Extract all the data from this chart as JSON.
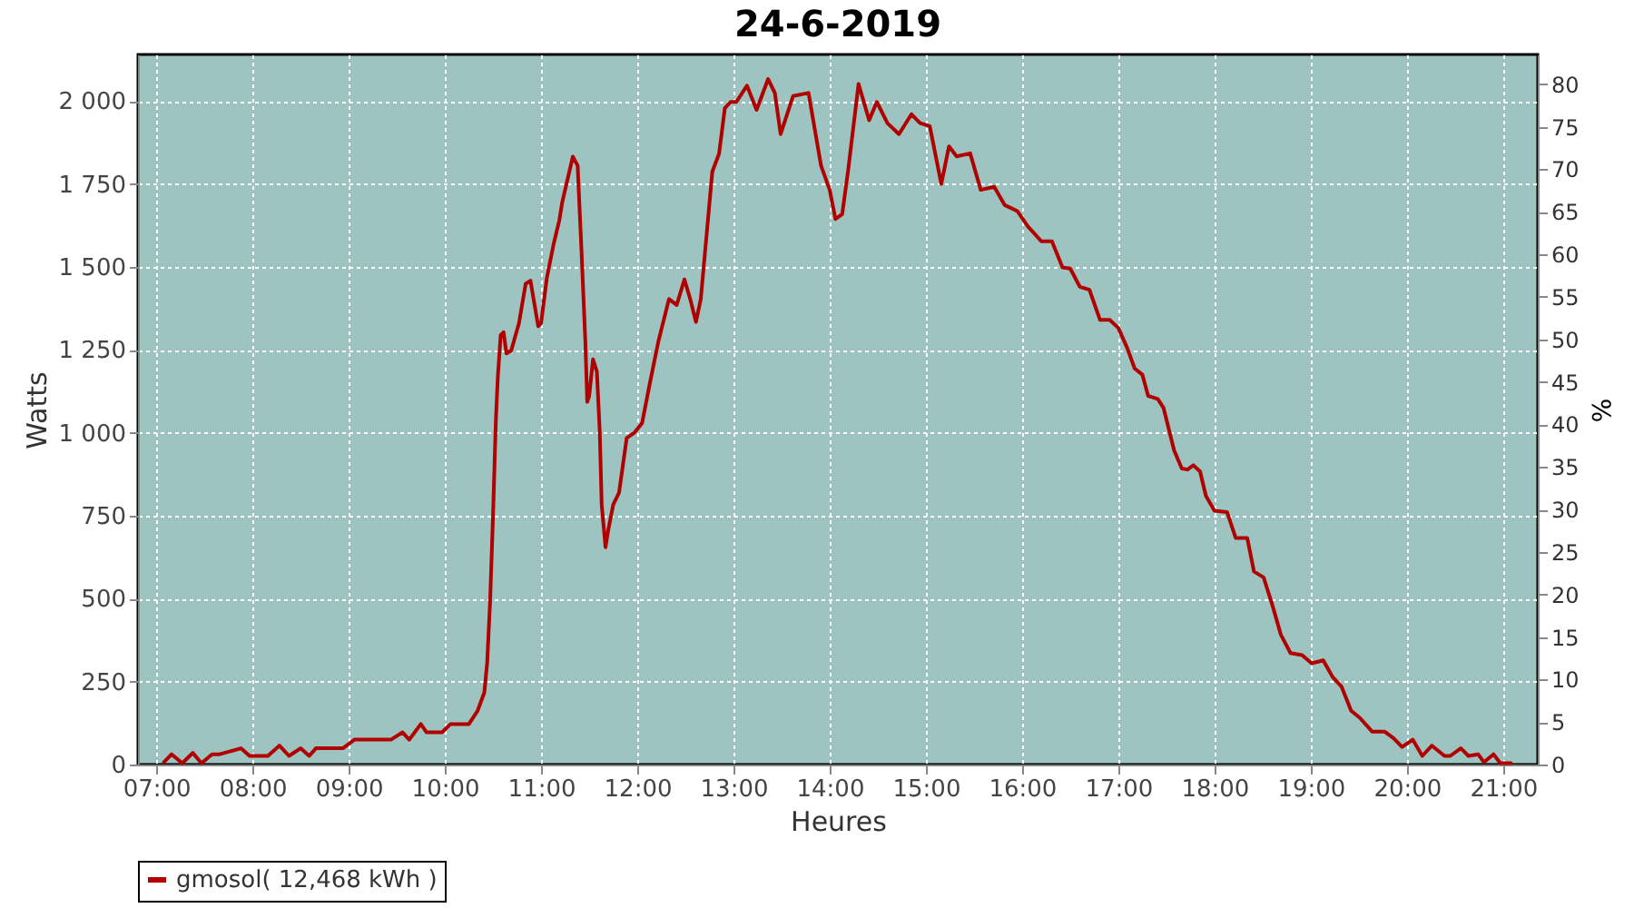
{
  "chart_data": {
    "type": "line",
    "title": "24-6-2019",
    "xlabel": "Heures",
    "ylabel": "Watts",
    "y2label": "%",
    "xlim": [
      6.81,
      21.36
    ],
    "xticks": [
      {
        "value": 7,
        "label": "07:00"
      },
      {
        "value": 8,
        "label": "08:00"
      },
      {
        "value": 9,
        "label": "09:00"
      },
      {
        "value": 10,
        "label": "10:00"
      },
      {
        "value": 11,
        "label": "11:00"
      },
      {
        "value": 12,
        "label": "12:00"
      },
      {
        "value": 13,
        "label": "13:00"
      },
      {
        "value": 14,
        "label": "14:00"
      },
      {
        "value": 15,
        "label": "15:00"
      },
      {
        "value": 16,
        "label": "16:00"
      },
      {
        "value": 17,
        "label": "17:00"
      },
      {
        "value": 18,
        "label": "18:00"
      },
      {
        "value": 19,
        "label": "19:00"
      },
      {
        "value": 20,
        "label": "20:00"
      },
      {
        "value": 21,
        "label": "21:00"
      }
    ],
    "ylim": [
      0,
      2140
    ],
    "yticks": [
      0,
      250,
      500,
      750,
      {
        "value": 1000,
        "label": "1 000"
      },
      {
        "value": 1250,
        "label": "1 250"
      },
      {
        "value": 1500,
        "label": "1 500"
      },
      {
        "value": 1750,
        "label": "1 750"
      },
      {
        "value": 2000,
        "label": "2 000"
      }
    ],
    "y2lim": [
      0,
      83.5
    ],
    "y2ticks": [
      0,
      5,
      10,
      15,
      20,
      25,
      30,
      35,
      40,
      45,
      50,
      55,
      60,
      65,
      70,
      75,
      80
    ],
    "grid": true,
    "legend": "bottom",
    "series": [
      {
        "name": "gmosol( 12,468 kWh )",
        "color": "#b00000",
        "x": [
          7.08,
          7.16,
          7.27,
          7.38,
          7.47,
          7.58,
          7.66,
          7.88,
          7.97,
          8.16,
          8.28,
          8.38,
          8.5,
          8.59,
          8.66,
          8.94,
          9.06,
          9.44,
          9.56,
          9.63,
          9.75,
          9.81,
          9.97,
          10.06,
          10.25,
          10.34,
          10.41,
          10.44,
          10.47,
          10.5,
          10.53,
          10.55,
          10.58,
          10.61,
          10.64,
          10.69,
          10.77,
          10.84,
          10.89,
          10.97,
          11.0,
          11.06,
          11.13,
          11.19,
          11.22,
          11.33,
          11.38,
          11.42,
          11.46,
          11.48,
          11.5,
          11.54,
          11.58,
          11.61,
          11.63,
          11.67,
          11.7,
          11.75,
          11.81,
          11.89,
          11.97,
          12.05,
          12.13,
          12.22,
          12.33,
          12.41,
          12.49,
          12.55,
          12.61,
          12.66,
          12.74,
          12.78,
          12.85,
          12.91,
          12.97,
          13.03,
          13.14,
          13.24,
          13.36,
          13.43,
          13.49,
          13.62,
          13.78,
          13.91,
          14.0,
          14.06,
          14.13,
          14.19,
          14.3,
          14.41,
          14.49,
          14.6,
          14.72,
          14.85,
          14.94,
          15.04,
          15.16,
          15.24,
          15.32,
          15.46,
          15.57,
          15.71,
          15.82,
          15.95,
          16.06,
          16.2,
          16.31,
          16.42,
          16.5,
          16.6,
          16.7,
          16.81,
          16.91,
          17.0,
          17.09,
          17.17,
          17.25,
          17.31,
          17.41,
          17.47,
          17.58,
          17.66,
          17.72,
          17.78,
          17.85,
          17.91,
          18.0,
          18.13,
          18.22,
          18.34,
          18.41,
          18.51,
          18.6,
          18.69,
          18.79,
          18.91,
          19.01,
          19.13,
          19.23,
          19.32,
          19.42,
          19.51,
          19.64,
          19.77,
          19.86,
          19.95,
          20.06,
          20.16,
          20.26,
          20.39,
          20.45,
          20.56,
          20.64,
          20.74,
          20.8,
          20.9,
          20.97,
          21.08
        ],
        "values": [
          7,
          31,
          4,
          35,
          4,
          31,
          31,
          49,
          26,
          26,
          57,
          26,
          49,
          26,
          49,
          49,
          75,
          75,
          97,
          75,
          122,
          97,
          97,
          122,
          122,
          162,
          217,
          308,
          491,
          746,
          1038,
          1166,
          1294,
          1303,
          1239,
          1248,
          1330,
          1449,
          1458,
          1321,
          1330,
          1467,
          1568,
          1641,
          1695,
          1832,
          1805,
          1549,
          1276,
          1093,
          1111,
          1221,
          1184,
          1002,
          783,
          655,
          710,
          783,
          819,
          984,
          1000,
          1029,
          1148,
          1276,
          1403,
          1385,
          1462,
          1403,
          1334,
          1403,
          1659,
          1787,
          1841,
          1978,
          1997,
          1997,
          2046,
          1973,
          2066,
          2024,
          1900,
          2015,
          2024,
          1805,
          1732,
          1644,
          1659,
          1787,
          2051,
          1942,
          1997,
          1933,
          1900,
          1960,
          1933,
          1924,
          1750,
          1863,
          1833,
          1842,
          1732,
          1741,
          1686,
          1668,
          1622,
          1577,
          1577,
          1498,
          1495,
          1440,
          1431,
          1340,
          1340,
          1316,
          1257,
          1194,
          1175,
          1111,
          1102,
          1075,
          947,
          892,
          889,
          902,
          883,
          810,
          765,
          761,
          683,
          683,
          582,
          564,
          482,
          391,
          336,
          330,
          305,
          314,
          263,
          235,
          162,
          141,
          99,
          99,
          80,
          53,
          75,
          26,
          57,
          26,
          26,
          49,
          26,
          31,
          7,
          31,
          4,
          4
        ]
      }
    ]
  }
}
